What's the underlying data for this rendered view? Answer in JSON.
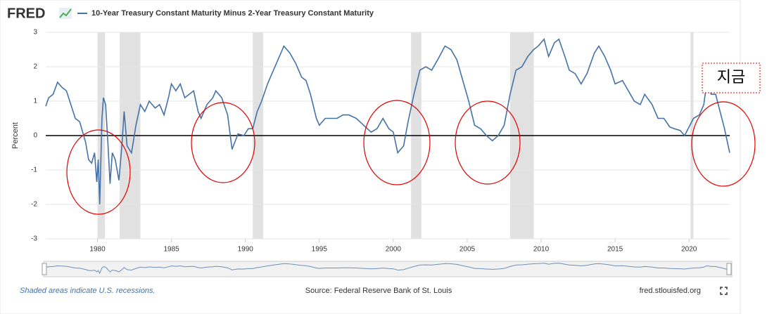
{
  "chart_data": {
    "type": "line",
    "logo": "FRED",
    "ylabel": "Percent",
    "xlim": [
      1976.5,
      2022.75
    ],
    "ylim": [
      -3,
      3
    ],
    "xticks": [
      1980,
      1985,
      1990,
      1995,
      2000,
      2005,
      2010,
      2015,
      2020
    ],
    "yticks": [
      -3,
      -2,
      -1,
      0,
      1,
      2,
      3
    ],
    "grid": true,
    "recessions": [
      [
        1980.0,
        1980.5
      ],
      [
        1981.5,
        1982.9
      ],
      [
        1990.5,
        1991.2
      ],
      [
        2001.2,
        2001.9
      ],
      [
        2007.9,
        2009.5
      ],
      [
        2020.1,
        2020.3
      ]
    ],
    "x": [
      1976.5,
      1976.7,
      1977.0,
      1977.3,
      1977.6,
      1977.9,
      1978.2,
      1978.5,
      1978.8,
      1979.0,
      1979.2,
      1979.4,
      1979.6,
      1979.8,
      1979.95,
      1980.05,
      1980.15,
      1980.3,
      1980.4,
      1980.55,
      1980.7,
      1980.85,
      1981.0,
      1981.2,
      1981.45,
      1981.65,
      1981.8,
      1982.0,
      1982.3,
      1982.6,
      1982.9,
      1983.2,
      1983.5,
      1983.9,
      1984.2,
      1984.5,
      1984.8,
      1985.0,
      1985.3,
      1985.6,
      1985.9,
      1986.2,
      1986.5,
      1986.8,
      1987.0,
      1987.4,
      1987.8,
      1988.0,
      1988.4,
      1988.8,
      1989.1,
      1989.5,
      1989.9,
      1990.2,
      1990.5,
      1990.8,
      1991.1,
      1991.5,
      1991.9,
      1992.3,
      1992.6,
      1993.0,
      1993.4,
      1993.8,
      1994.1,
      1994.4,
      1994.8,
      1995.0,
      1995.4,
      1995.8,
      1996.2,
      1996.6,
      1997.0,
      1997.5,
      1998.0,
      1998.5,
      1998.9,
      1999.3,
      1999.7,
      2000.0,
      2000.3,
      2000.7,
      2001.0,
      2001.4,
      2001.8,
      2002.2,
      2002.6,
      2003.0,
      2003.5,
      2003.9,
      2004.3,
      2004.7,
      2005.1,
      2005.5,
      2005.9,
      2006.3,
      2006.7,
      2007.1,
      2007.5,
      2007.9,
      2008.3,
      2008.7,
      2009.1,
      2009.5,
      2009.8,
      2010.2,
      2010.5,
      2010.9,
      2011.2,
      2011.6,
      2011.9,
      2012.3,
      2012.7,
      2013.1,
      2013.6,
      2013.9,
      2014.3,
      2014.7,
      2015.0,
      2015.5,
      2015.9,
      2016.3,
      2016.7,
      2017.0,
      2017.5,
      2017.9,
      2018.3,
      2018.7,
      2019.0,
      2019.4,
      2019.7,
      2020.0,
      2020.3,
      2020.7,
      2021.0,
      2021.2,
      2021.5,
      2021.8,
      2022.1,
      2022.4,
      2022.6,
      2022.75
    ],
    "series": [
      {
        "name": "10-Year Treasury Constant Maturity Minus 2-Year Treasury Constant Maturity",
        "color": "#4572a7",
        "values": [
          0.85,
          1.1,
          1.2,
          1.55,
          1.4,
          1.3,
          0.9,
          0.5,
          0.4,
          0.1,
          -0.2,
          -0.7,
          -0.8,
          -0.5,
          -1.35,
          -0.7,
          -2.0,
          0.5,
          1.1,
          0.9,
          -0.2,
          -1.4,
          -0.5,
          -0.7,
          -1.3,
          -0.3,
          0.7,
          -0.3,
          -0.5,
          0.3,
          0.9,
          0.7,
          1.0,
          0.8,
          0.9,
          0.6,
          1.1,
          1.5,
          1.3,
          1.5,
          1.1,
          1.2,
          1.3,
          0.7,
          0.5,
          0.9,
          1.1,
          1.3,
          1.1,
          0.6,
          -0.4,
          0.05,
          0.0,
          0.2,
          0.2,
          0.7,
          1.0,
          1.5,
          1.9,
          2.3,
          2.6,
          2.4,
          2.1,
          1.7,
          1.6,
          1.2,
          0.5,
          0.3,
          0.5,
          0.5,
          0.5,
          0.6,
          0.6,
          0.5,
          0.3,
          0.1,
          0.2,
          0.5,
          0.2,
          0.1,
          -0.5,
          -0.3,
          0.4,
          1.2,
          1.9,
          2.0,
          1.9,
          2.2,
          2.6,
          2.5,
          2.2,
          1.6,
          1.0,
          0.3,
          0.2,
          0.0,
          -0.15,
          0.0,
          0.3,
          1.2,
          1.9,
          2.0,
          2.3,
          2.5,
          2.6,
          2.8,
          2.3,
          2.7,
          2.8,
          2.3,
          1.9,
          1.8,
          1.5,
          1.8,
          2.4,
          2.6,
          2.3,
          1.9,
          1.5,
          1.6,
          1.3,
          1.0,
          0.9,
          1.2,
          0.9,
          0.5,
          0.5,
          0.25,
          0.2,
          0.15,
          0.0,
          0.25,
          0.5,
          0.6,
          0.9,
          1.55,
          1.2,
          1.2,
          0.7,
          0.2,
          -0.2,
          -0.5
        ]
      }
    ],
    "annotation": "지금",
    "footer_left": "Shaded areas indicate U.S. recessions.",
    "source": "Source: Federal Reserve Bank of St. Louis",
    "footer_right": "fred.stlouisfed.org"
  }
}
